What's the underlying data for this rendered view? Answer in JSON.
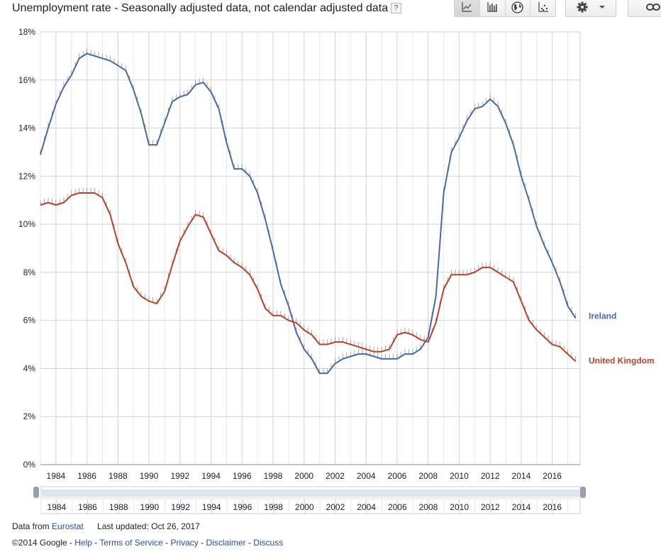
{
  "header": {
    "title": "Unemployment rate - Seasonally adjusted data, not calendar adjusted data",
    "help_glyph": "?"
  },
  "toolbar": {
    "view_buttons": [
      {
        "name": "line-chart",
        "icon": "line-chart-icon",
        "active": true
      },
      {
        "name": "bar-chart",
        "icon": "bar-chart-icon",
        "active": false
      },
      {
        "name": "map",
        "icon": "globe-icon",
        "active": false
      },
      {
        "name": "scatter",
        "icon": "scatter-icon",
        "active": false
      }
    ],
    "settings_icon": "gear-icon",
    "dropdown_icon": "caret-down-icon",
    "link_icon": "link-icon"
  },
  "chart_data": {
    "type": "line",
    "title": "Unemployment rate - Seasonally adjusted data, not calendar adjusted data",
    "xlabel": "",
    "ylabel": "",
    "xlim": [
      1983.0,
      2017.8
    ],
    "ylim": [
      0,
      18
    ],
    "y_ticks": [
      0,
      2,
      4,
      6,
      8,
      10,
      12,
      14,
      16,
      18
    ],
    "y_tick_labels": [
      "0%",
      "2%",
      "4%",
      "6%",
      "8%",
      "10%",
      "12%",
      "14%",
      "16%",
      "18%"
    ],
    "x_ticks": [
      1984,
      1986,
      1988,
      1990,
      1992,
      1994,
      1996,
      1998,
      2000,
      2002,
      2004,
      2006,
      2008,
      2010,
      2012,
      2014,
      2016
    ],
    "x_tick_labels": [
      "1984",
      "1986",
      "1988",
      "1990",
      "1992",
      "1994",
      "1996",
      "1998",
      "2000",
      "2002",
      "2004",
      "2006",
      "2008",
      "2010",
      "2012",
      "2014",
      "2016"
    ],
    "grid": true,
    "legend": "inline-right",
    "series": [
      {
        "name": "Ireland",
        "color": "#4a6aa5",
        "x": [
          1983.0,
          1983.5,
          1984.0,
          1984.5,
          1985.0,
          1985.5,
          1986.0,
          1986.5,
          1987.0,
          1987.5,
          1988.0,
          1988.5,
          1989.0,
          1989.5,
          1990.0,
          1990.5,
          1991.0,
          1991.5,
          1992.0,
          1992.5,
          1993.0,
          1993.5,
          1994.0,
          1994.5,
          1995.0,
          1995.5,
          1996.0,
          1996.5,
          1997.0,
          1997.5,
          1998.0,
          1998.5,
          1999.0,
          1999.5,
          2000.0,
          2000.5,
          2001.0,
          2001.5,
          2002.0,
          2002.5,
          2003.0,
          2003.5,
          2004.0,
          2004.5,
          2005.0,
          2005.5,
          2006.0,
          2006.5,
          2007.0,
          2007.5,
          2008.0,
          2008.5,
          2009.0,
          2009.5,
          2010.0,
          2010.5,
          2011.0,
          2011.5,
          2012.0,
          2012.5,
          2013.0,
          2013.5,
          2014.0,
          2014.5,
          2015.0,
          2015.5,
          2016.0,
          2016.5,
          2017.0,
          2017.5
        ],
        "values": [
          12.9,
          14.0,
          15.0,
          15.7,
          16.2,
          16.9,
          17.1,
          17.0,
          16.9,
          16.8,
          16.6,
          16.4,
          15.6,
          14.6,
          13.3,
          13.3,
          14.2,
          15.1,
          15.3,
          15.4,
          15.8,
          15.9,
          15.5,
          14.8,
          13.4,
          12.3,
          12.3,
          12.0,
          11.3,
          10.2,
          8.9,
          7.5,
          6.6,
          5.5,
          4.8,
          4.4,
          3.8,
          3.8,
          4.2,
          4.4,
          4.5,
          4.6,
          4.6,
          4.5,
          4.4,
          4.4,
          4.4,
          4.6,
          4.6,
          4.8,
          5.3,
          7.0,
          11.3,
          13.0,
          13.6,
          14.3,
          14.8,
          14.9,
          15.2,
          14.9,
          14.2,
          13.3,
          12.0,
          11.0,
          9.9,
          9.1,
          8.4,
          7.6,
          6.6,
          6.1
        ]
      },
      {
        "name": "United Kingdom",
        "color": "#b5432a",
        "x": [
          1983.0,
          1983.5,
          1984.0,
          1984.5,
          1985.0,
          1985.5,
          1986.0,
          1986.5,
          1987.0,
          1987.5,
          1988.0,
          1988.5,
          1989.0,
          1989.5,
          1990.0,
          1990.5,
          1991.0,
          1991.5,
          1992.0,
          1992.5,
          1993.0,
          1993.5,
          1994.0,
          1994.5,
          1995.0,
          1995.5,
          1996.0,
          1996.5,
          1997.0,
          1997.5,
          1998.0,
          1998.5,
          1999.0,
          1999.5,
          2000.0,
          2000.5,
          2001.0,
          2001.5,
          2002.0,
          2002.5,
          2003.0,
          2003.5,
          2004.0,
          2004.5,
          2005.0,
          2005.5,
          2006.0,
          2006.5,
          2007.0,
          2007.5,
          2008.0,
          2008.5,
          2009.0,
          2009.5,
          2010.0,
          2010.5,
          2011.0,
          2011.5,
          2012.0,
          2012.5,
          2013.0,
          2013.5,
          2014.0,
          2014.5,
          2015.0,
          2015.5,
          2016.0,
          2016.5,
          2017.0,
          2017.5
        ],
        "values": [
          10.8,
          10.9,
          10.8,
          10.9,
          11.2,
          11.3,
          11.3,
          11.3,
          11.1,
          10.4,
          9.2,
          8.4,
          7.4,
          7.0,
          6.8,
          6.7,
          7.2,
          8.3,
          9.3,
          9.9,
          10.4,
          10.3,
          9.6,
          8.9,
          8.7,
          8.4,
          8.2,
          7.9,
          7.3,
          6.5,
          6.2,
          6.2,
          6.0,
          5.9,
          5.6,
          5.4,
          5.0,
          5.0,
          5.1,
          5.1,
          5.0,
          4.9,
          4.8,
          4.7,
          4.7,
          4.8,
          5.4,
          5.5,
          5.4,
          5.2,
          5.1,
          5.9,
          7.3,
          7.9,
          7.9,
          7.9,
          8.0,
          8.2,
          8.2,
          8.0,
          7.8,
          7.6,
          6.8,
          6.0,
          5.6,
          5.3,
          5.0,
          4.9,
          4.6,
          4.3
        ]
      }
    ],
    "navigator": {
      "tick_labels": [
        "1984",
        "1986",
        "1988",
        "1990",
        "1992",
        "1994",
        "1996",
        "1998",
        "2000",
        "2002",
        "2004",
        "2006",
        "2008",
        "2010",
        "2012",
        "2014",
        "2016"
      ]
    }
  },
  "footer": {
    "data_from_prefix": "Data from",
    "source_link": "Eurostat",
    "last_updated": "Last updated: Oct 26, 2017",
    "copyright": "©2014 Google",
    "separator": "-",
    "links": [
      "Help",
      "Terms of Service",
      "Privacy",
      "Disclaimer",
      "Discuss"
    ]
  }
}
